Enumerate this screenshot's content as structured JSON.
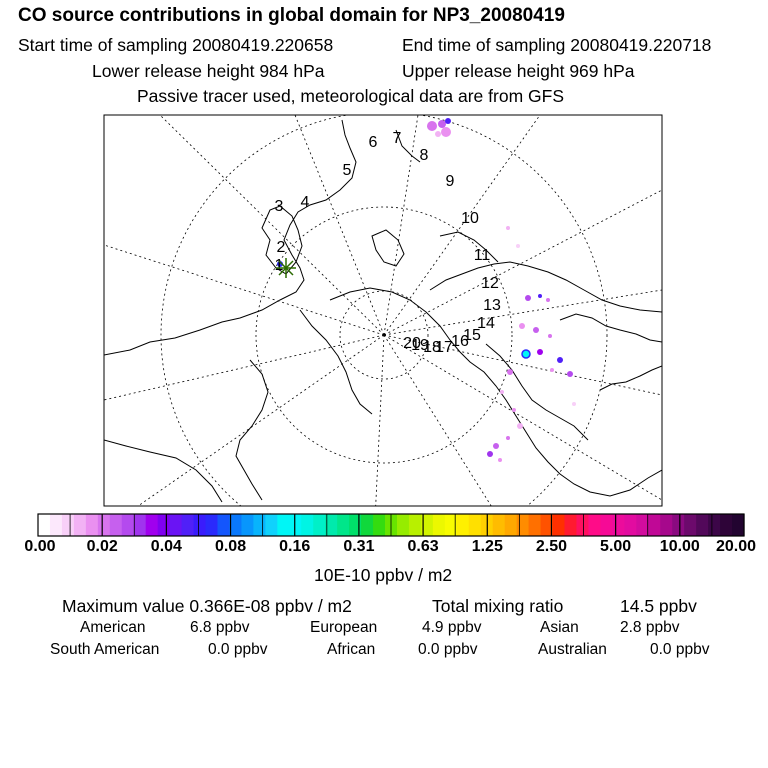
{
  "header": {
    "title": "CO  source contributions in global domain for NP3_20080419",
    "start_label": "Start time of sampling 20080419.220658",
    "end_label": "End time of sampling 20080419.220718",
    "lower_label": "Lower release height  984 hPa",
    "upper_label": "Upper release height  969 hPa",
    "note": "Passive tracer used, meteorological data are from GFS"
  },
  "chart_data": {
    "type": "heatmap",
    "projection": "north polar stereographic",
    "map_region": "global domain",
    "trajectory_labels": [
      "1",
      "2",
      "3",
      "4",
      "5",
      "6",
      "7",
      "8",
      "9",
      "10",
      "11",
      "12",
      "13",
      "14",
      "15",
      "16",
      "17",
      "18",
      "19",
      "20"
    ],
    "source_marker": "+",
    "colorbar": {
      "unit_label": "10E-10 ppbv / m2",
      "tick_labels": [
        "0.00",
        "0.02",
        "0.04",
        "0.08",
        "0.16",
        "0.31",
        "0.63",
        "1.25",
        "2.50",
        "5.00",
        "10.00",
        "20.00"
      ],
      "tick_values": [
        0.0,
        0.02,
        0.04,
        0.08,
        0.16,
        0.31,
        0.63,
        1.25,
        2.5,
        5.0,
        10.0,
        20.0
      ],
      "colors": [
        "#ffffff",
        "#fce8fc",
        "#f8d0f8",
        "#f2b2f4",
        "#ea90f0",
        "#d874ee",
        "#c660ee",
        "#b44aee",
        "#a034ee",
        "#a000ee",
        "#8000f0",
        "#6a14f4",
        "#5020f8",
        "#3a1cfc",
        "#2a2afc",
        "#1456fc",
        "#0a78fc",
        "#0896fc",
        "#08b4fc",
        "#10d2fc",
        "#00f6f6",
        "#00f6f6",
        "#00f4e4",
        "#00f0c8",
        "#00eaac",
        "#00e68a",
        "#00e06a",
        "#10d83c",
        "#34dc10",
        "#68e400",
        "#96ec00",
        "#b8f000",
        "#d2f400",
        "#ecf800",
        "#f8fc00",
        "#fff000",
        "#ffe000",
        "#ffd000",
        "#ffbc00",
        "#ffa800",
        "#ff8c00",
        "#ff7000",
        "#ff5200",
        "#ff3000",
        "#ff1a30",
        "#ff1060",
        "#ff0c88",
        "#f60a96",
        "#ec0c9c",
        "#e20ca0",
        "#d20c9e",
        "#c00896",
        "#a6088c",
        "#8a0a80",
        "#6c0a6c",
        "#52085a",
        "#3c0648",
        "#2e0438",
        "#220430"
      ]
    }
  },
  "stats": {
    "max_label": "Maximum value  0.366E-08 ppbv / m2",
    "total_label": "Total mixing ratio",
    "total_value": "14.5 ppbv"
  },
  "regions": [
    {
      "name": "American",
      "value": "6.8 ppbv"
    },
    {
      "name": "European",
      "value": "4.9 ppbv"
    },
    {
      "name": "Asian",
      "value": "2.8 ppbv"
    },
    {
      "name": "South American",
      "value": "0.0 ppbv"
    },
    {
      "name": "African",
      "value": "0.0 ppbv"
    },
    {
      "name": "Australian",
      "value": "0.0 ppbv"
    }
  ]
}
